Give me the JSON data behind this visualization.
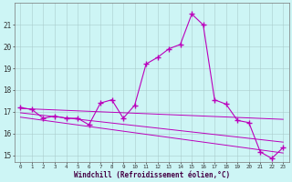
{
  "xlabel": "Windchill (Refroidissement éolien,°C)",
  "background_color": "#cdf5f5",
  "grid_color": "#aacccc",
  "line_color": "#bb00bb",
  "xlim": [
    -0.5,
    23.5
  ],
  "ylim": [
    14.7,
    22.0
  ],
  "xticks": [
    0,
    1,
    2,
    3,
    4,
    5,
    6,
    7,
    8,
    9,
    10,
    11,
    12,
    13,
    14,
    15,
    16,
    17,
    18,
    19,
    20,
    21,
    22,
    23
  ],
  "yticks": [
    15,
    16,
    17,
    18,
    19,
    20,
    21
  ],
  "main_x": [
    0,
    1,
    2,
    3,
    4,
    5,
    6,
    7,
    8,
    9,
    10,
    11,
    12,
    13,
    14,
    15,
    16,
    17,
    18,
    19,
    20,
    21,
    22,
    23
  ],
  "main_y": [
    17.2,
    17.1,
    16.7,
    16.8,
    16.7,
    16.7,
    16.4,
    17.4,
    17.55,
    16.7,
    17.3,
    19.2,
    19.5,
    19.9,
    20.1,
    21.5,
    21.0,
    17.55,
    17.35,
    16.6,
    16.5,
    15.15,
    14.85,
    15.35
  ],
  "line1_x": [
    0,
    23
  ],
  "line1_y": [
    17.15,
    16.65
  ],
  "line2_x": [
    0,
    23
  ],
  "line2_y": [
    16.95,
    15.6
  ],
  "line3_x": [
    0,
    23
  ],
  "line3_y": [
    16.75,
    15.1
  ]
}
